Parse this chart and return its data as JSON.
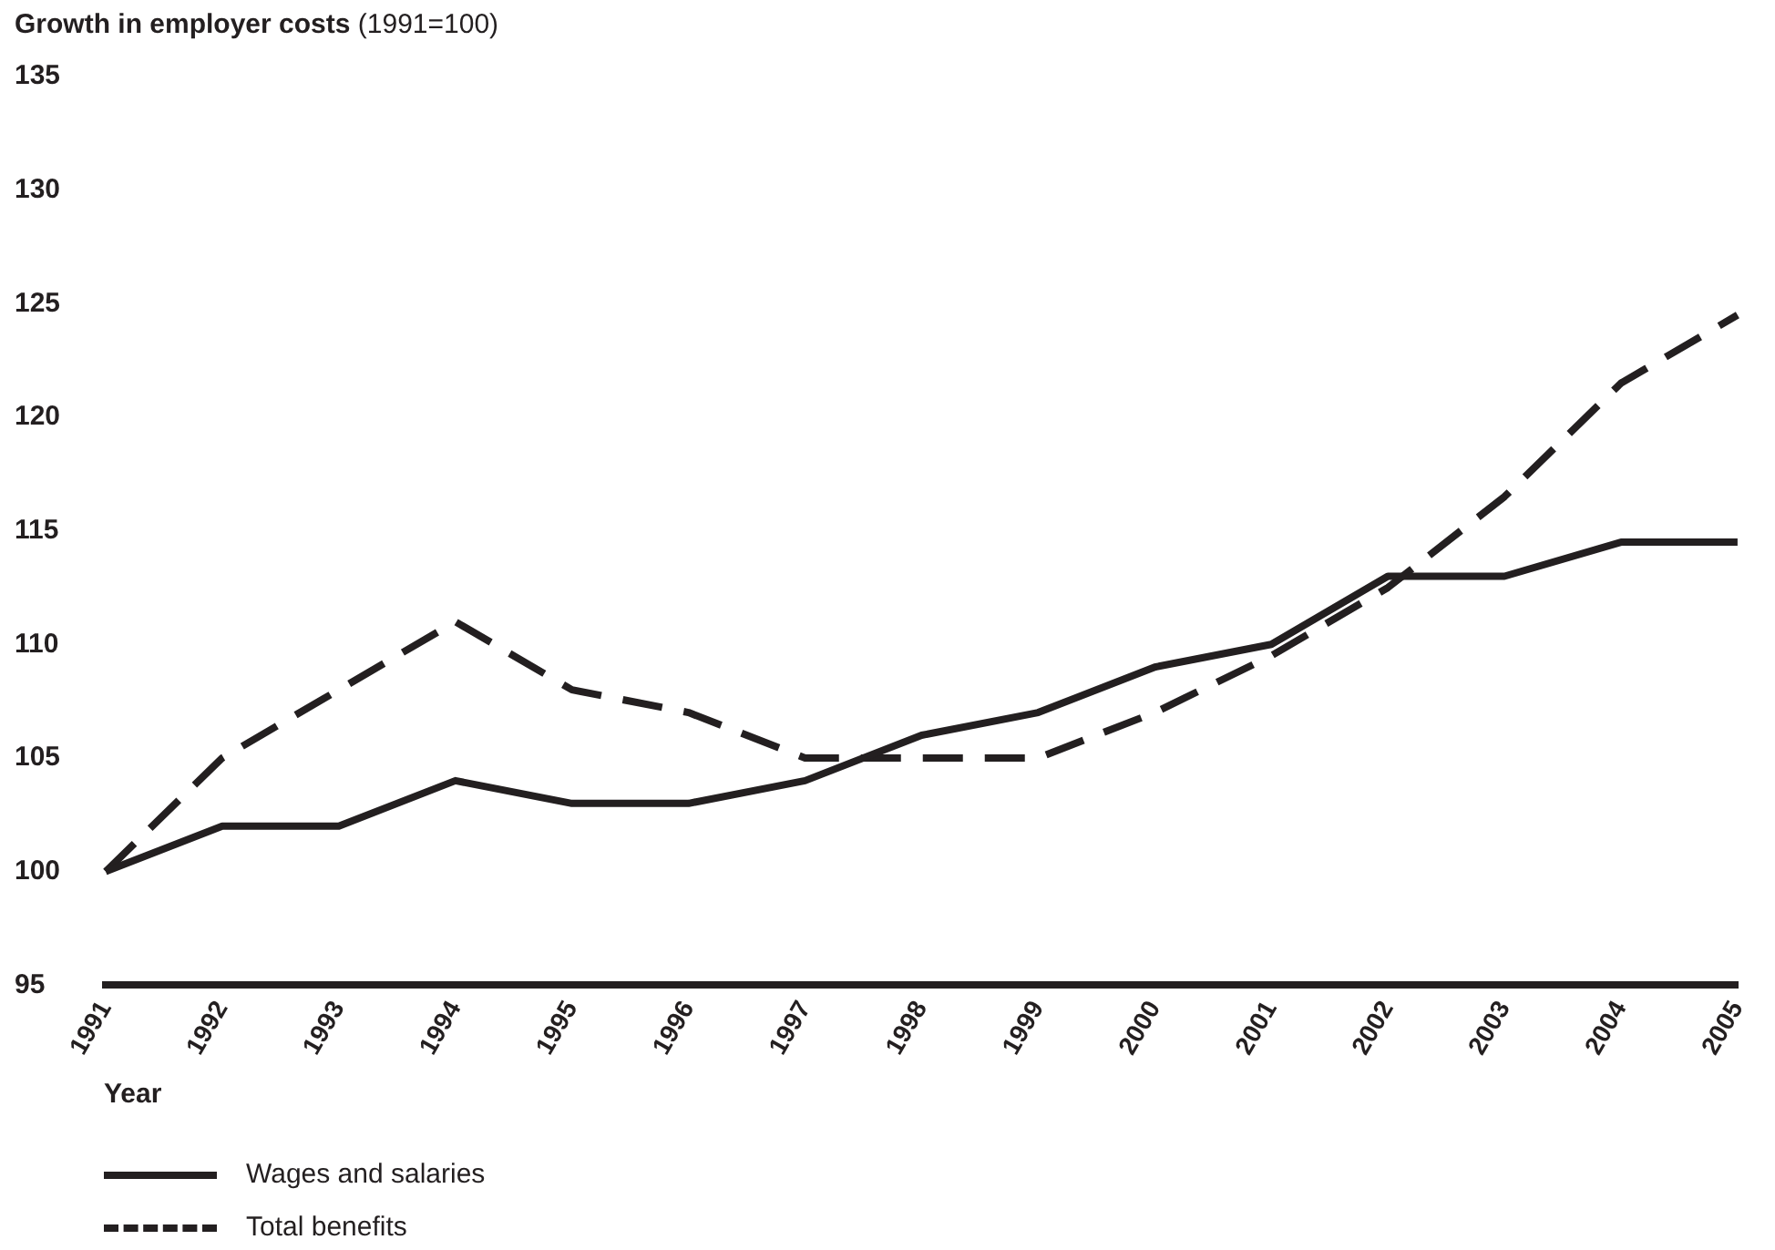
{
  "chart_data": {
    "type": "line",
    "title": "Growth in employer costs",
    "subtitle": "(1991=100)",
    "xlabel": "Year",
    "categories": [
      "1991",
      "1992",
      "1993",
      "1994",
      "1995",
      "1996",
      "1997",
      "1998",
      "1999",
      "2000",
      "2001",
      "2002",
      "2003",
      "2004",
      "2005"
    ],
    "series": [
      {
        "name": "Wages and salaries",
        "color": "#231f20",
        "line_style": "solid",
        "values": [
          100,
          102,
          102,
          104,
          103,
          103,
          104,
          106,
          107,
          109,
          110,
          113,
          113,
          114.5,
          114.5
        ]
      },
      {
        "name": "Total benefits",
        "color": "#231f20",
        "line_style": "dashed",
        "values": [
          100,
          105,
          108,
          111,
          108,
          107,
          105,
          105,
          105,
          107,
          109.5,
          112.5,
          116.5,
          121.5,
          124.5
        ]
      }
    ],
    "ylim": [
      95,
      135
    ],
    "yticks": [
      95,
      100,
      105,
      110,
      115,
      120,
      125,
      130,
      135
    ],
    "grid": false,
    "legend": "bottom left",
    "marker": "none"
  }
}
